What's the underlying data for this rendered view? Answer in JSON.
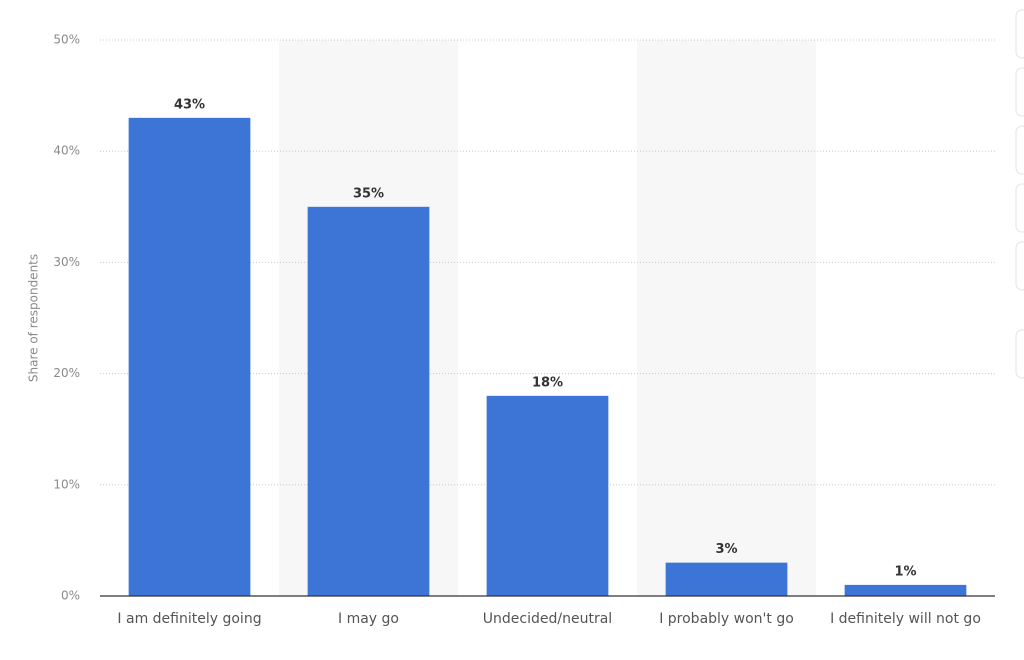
{
  "chart_data": {
    "type": "bar",
    "y_label": "Share of respondents",
    "categories": [
      "I am definitely going",
      "I may go",
      "Undecided/neutral",
      "I probably won't go",
      "I definitely will not go"
    ],
    "values": [
      43,
      35,
      18,
      3,
      1
    ],
    "value_labels": [
      "43%",
      "35%",
      "18%",
      "3%",
      "1%"
    ],
    "color": "#3c75d6",
    "ylim": [
      0,
      50
    ],
    "yticks": [
      {
        "value": 0,
        "label": "0%"
      },
      {
        "value": 10,
        "label": "10%"
      },
      {
        "value": 20,
        "label": "20%"
      },
      {
        "value": 30,
        "label": "30%"
      },
      {
        "value": 40,
        "label": "40%"
      },
      {
        "value": 50,
        "label": "50%"
      }
    ],
    "grid": true
  }
}
